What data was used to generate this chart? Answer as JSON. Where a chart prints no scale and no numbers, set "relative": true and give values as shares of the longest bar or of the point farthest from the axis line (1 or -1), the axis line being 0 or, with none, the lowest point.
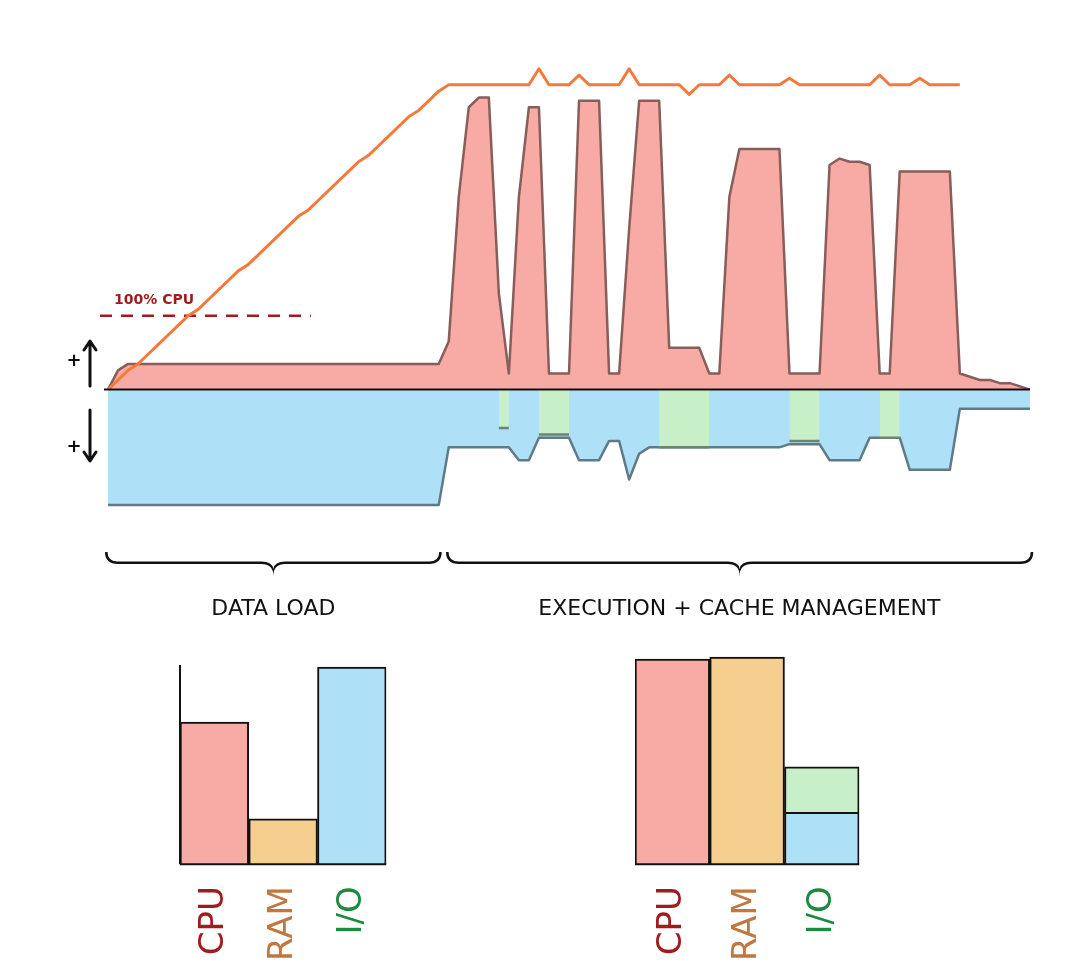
{
  "chart_data": [
    {
      "type": "area",
      "relative": true,
      "categories": [
        null,
        null,
        null,
        null,
        null,
        null,
        null,
        null,
        null,
        null,
        null,
        null,
        null,
        null,
        null,
        null,
        null,
        null,
        null,
        null,
        null,
        null,
        null,
        null,
        null,
        null,
        null,
        null,
        null,
        null,
        null,
        null,
        null,
        null,
        null,
        null,
        null,
        null,
        null,
        null,
        null,
        null,
        null,
        null,
        null,
        null,
        null,
        null,
        null,
        null,
        null,
        null,
        null,
        null,
        null,
        null,
        null,
        null,
        null,
        null,
        null,
        null,
        null,
        null,
        null,
        null,
        null,
        null,
        null,
        null,
        null,
        null,
        null,
        null,
        null,
        null,
        null,
        null,
        null,
        null,
        null,
        null,
        null,
        null,
        null,
        null,
        null,
        null,
        null,
        null,
        null,
        null,
        null
      ],
      "series": [
        {
          "type": "area",
          "color": "#f8aaa4",
          "values": [
            0,
            0.06,
            0.08,
            0.08,
            0.08,
            0.08,
            0.08,
            0.08,
            0.08,
            0.08,
            0.08,
            0.08,
            0.08,
            0.08,
            0.08,
            0.08,
            0.08,
            0.08,
            0.08,
            0.08,
            0.08,
            0.08,
            0.08,
            0.08,
            0.08,
            0.08,
            0.08,
            0.08,
            0.08,
            0.08,
            0.08,
            0.08,
            0.08,
            0.08,
            0.15,
            0.6,
            0.88,
            0.91,
            0.91,
            0.3,
            0.05,
            0.6,
            0.88,
            0.88,
            0.05,
            0.05,
            0.05,
            0.9,
            0.9,
            0.9,
            0.05,
            0.05,
            0.5,
            0.9,
            0.9,
            0.9,
            0.13,
            0.13,
            0.13,
            0.13,
            0.05,
            0.05,
            0.6,
            0.75,
            0.75,
            0.75,
            0.75,
            0.75,
            0.05,
            0.05,
            0.05,
            0.05,
            0.7,
            0.72,
            0.71,
            0.71,
            0.7,
            0.05,
            0.05,
            0.68,
            0.68,
            0.68,
            0.68,
            0.68,
            0.68,
            0.05,
            0.04,
            0.03,
            0.03,
            0.02,
            0.02,
            0.01,
            0
          ]
        },
        {
          "type": "area",
          "color": "#aee0f8",
          "values": [
            -0.36,
            -0.36,
            -0.36,
            -0.36,
            -0.36,
            -0.36,
            -0.36,
            -0.36,
            -0.36,
            -0.36,
            -0.36,
            -0.36,
            -0.36,
            -0.36,
            -0.36,
            -0.36,
            -0.36,
            -0.36,
            -0.36,
            -0.36,
            -0.36,
            -0.36,
            -0.36,
            -0.36,
            -0.36,
            -0.36,
            -0.36,
            -0.36,
            -0.36,
            -0.36,
            -0.36,
            -0.36,
            -0.36,
            -0.36,
            -0.18,
            -0.18,
            -0.18,
            -0.18,
            -0.18,
            -0.18,
            -0.18,
            -0.22,
            -0.22,
            -0.15,
            -0.15,
            -0.15,
            -0.15,
            -0.22,
            -0.22,
            -0.22,
            -0.16,
            -0.16,
            -0.28,
            -0.2,
            -0.18,
            -0.18,
            -0.18,
            -0.18,
            -0.18,
            -0.18,
            -0.18,
            -0.18,
            -0.18,
            -0.18,
            -0.18,
            -0.18,
            -0.18,
            -0.18,
            -0.17,
            -0.17,
            -0.17,
            -0.17,
            -0.22,
            -0.22,
            -0.22,
            -0.22,
            -0.15,
            -0.15,
            -0.15,
            -0.15,
            -0.25,
            -0.25,
            -0.25,
            -0.25,
            -0.25,
            -0.06,
            -0.06,
            -0.06,
            -0.06,
            -0.06,
            -0.06,
            -0.06,
            -0.06
          ]
        },
        {
          "type": "area",
          "color": "#c8f0c8",
          "values": [
            null,
            null,
            null,
            null,
            null,
            null,
            null,
            null,
            null,
            null,
            null,
            null,
            null,
            null,
            null,
            null,
            null,
            null,
            null,
            null,
            null,
            null,
            null,
            null,
            null,
            null,
            null,
            null,
            null,
            null,
            null,
            null,
            null,
            null,
            null,
            null,
            null,
            null,
            null,
            -0.12,
            -0.12,
            null,
            null,
            -0.14,
            -0.14,
            -0.14,
            -0.14,
            null,
            null,
            null,
            null,
            null,
            null,
            null,
            null,
            -0.18,
            -0.18,
            -0.18,
            -0.18,
            -0.18,
            -0.18,
            null,
            null,
            null,
            null,
            null,
            null,
            null,
            -0.16,
            -0.16,
            -0.16,
            -0.16,
            null,
            null,
            null,
            null,
            null,
            -0.15,
            -0.15,
            -0.15,
            null,
            null,
            null,
            null,
            null,
            null,
            null,
            null,
            null,
            null,
            null,
            null,
            null
          ]
        },
        {
          "type": "line",
          "color": "#f47a3c",
          "values": [
            0,
            0.03,
            0.06,
            0.08,
            0.11,
            0.14,
            0.17,
            0.2,
            0.23,
            0.25,
            0.28,
            0.31,
            0.34,
            0.37,
            0.39,
            0.42,
            0.45,
            0.48,
            0.51,
            0.54,
            0.56,
            0.59,
            0.62,
            0.65,
            0.68,
            0.71,
            0.73,
            0.76,
            0.79,
            0.82,
            0.85,
            0.87,
            0.9,
            0.93,
            0.95,
            0.95,
            0.95,
            0.95,
            0.95,
            0.95,
            0.95,
            0.95,
            0.95,
            1.0,
            0.95,
            0.95,
            0.95,
            0.98,
            0.95,
            0.95,
            0.95,
            0.95,
            1.0,
            0.95,
            0.95,
            0.95,
            0.95,
            0.95,
            0.92,
            0.95,
            0.95,
            0.95,
            0.98,
            0.95,
            0.95,
            0.95,
            0.95,
            0.95,
            0.97,
            0.95,
            0.95,
            0.95,
            0.95,
            0.95,
            0.95,
            0.95,
            0.95,
            0.98,
            0.95,
            0.95,
            0.95,
            0.97,
            0.95,
            0.95,
            0.95,
            0.95,
            null,
            null,
            null,
            null,
            null,
            null,
            null
          ]
        }
      ],
      "ref_lines": [
        {
          "axis": "y",
          "value": 0.23,
          "label": "100% CPU",
          "color": "#a01c1c",
          "line_style": "dashed"
        }
      ],
      "annotations": [
        "+",
        "+",
        "DATA LOAD",
        "EXECUTION + CACHE MANAGEMENT"
      ]
    },
    {
      "type": "bar",
      "relative": true,
      "categories": [
        "CPU",
        "RAM",
        "I/O"
      ],
      "values": [
        0.72,
        0.23,
        1
      ],
      "colors": [
        "#f8aaa4",
        "#f6cf90",
        "#aee0f8"
      ]
    },
    {
      "type": "bar",
      "relative": true,
      "stacked": true,
      "categories": [
        "CPU",
        "RAM",
        "I/O"
      ],
      "series": [
        {
          "colors": [
            "#f8aaa4",
            "#f6cf90",
            "#aee0f8"
          ],
          "values": [
            0.99,
            1,
            0.25
          ]
        },
        {
          "color": "#c8f0c8",
          "values": [
            null,
            null,
            0.22
          ]
        }
      ]
    }
  ]
}
